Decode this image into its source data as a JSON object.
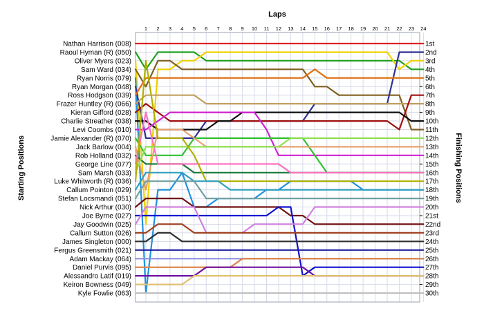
{
  "chart_data": {
    "type": "line",
    "title": "Laps",
    "ylabel_left": "Starting Positions",
    "ylabel_right": "Finishing Positions",
    "laps": [
      1,
      2,
      3,
      4,
      5,
      6,
      7,
      8,
      9,
      10,
      11,
      12,
      13,
      14,
      15,
      16,
      17,
      18,
      19,
      20,
      21,
      22,
      23,
      24
    ],
    "finishing_labels": [
      "1st",
      "2nd",
      "3rd",
      "4th",
      "5th",
      "6th",
      "7th",
      "8th",
      "9th",
      "10th",
      "11th",
      "12th",
      "13th",
      "14th",
      "15th",
      "16th",
      "17th",
      "18th",
      "19th",
      "20th",
      "21st",
      "22nd",
      "23rd",
      "24th",
      "25th",
      "26th",
      "27th",
      "28th",
      "29th",
      "30th"
    ],
    "grid": true,
    "series": [
      {
        "name": "Nathan Harrison (008)",
        "color": "#e02020",
        "positions": [
          1,
          1,
          1,
          1,
          1,
          1,
          1,
          1,
          1,
          1,
          1,
          1,
          1,
          1,
          1,
          1,
          1,
          1,
          1,
          1,
          1,
          1,
          1,
          1
        ]
      },
      {
        "name": "Raoul Hyman  (R) (050)",
        "color": "#20a020",
        "positions": [
          4,
          2,
          2,
          2,
          2,
          3,
          3,
          3,
          3,
          3,
          3,
          3,
          3,
          3,
          3,
          3,
          3,
          3,
          3,
          3,
          3,
          3,
          4,
          4
        ]
      },
      {
        "name": "Oliver Myers (023)",
        "color": "#f0d000",
        "positions": [
          22,
          4,
          4,
          3,
          3,
          2,
          2,
          2,
          2,
          2,
          2,
          2,
          2,
          2,
          2,
          2,
          2,
          2,
          2,
          2,
          2,
          4,
          3,
          3
        ]
      },
      {
        "name": "Sam Ward (034)",
        "color": "#806020",
        "positions": [
          6,
          3,
          3,
          4,
          4,
          4,
          4,
          4,
          4,
          4,
          4,
          4,
          4,
          4,
          6,
          6,
          7,
          7,
          7,
          7,
          7,
          7,
          11,
          11
        ]
      },
      {
        "name": "Ryan Norris (079)",
        "color": "#2090e0",
        "positions": [
          30,
          18,
          18,
          16,
          20,
          20,
          19,
          19,
          19,
          19,
          18,
          18,
          17,
          17,
          17,
          17,
          17,
          17,
          18,
          18,
          18,
          18,
          18,
          18
        ]
      },
      {
        "name": "Ryan Morgan (048)",
        "color": "#303090",
        "positions": [
          12,
          12,
          12,
          12,
          12,
          10,
          10,
          10,
          10,
          10,
          10,
          10,
          10,
          10,
          8,
          8,
          8,
          8,
          8,
          8,
          8,
          2,
          2,
          2
        ]
      },
      {
        "name": "Ross Hodgson (039)",
        "color": "#e07010",
        "positions": [
          5,
          5,
          5,
          5,
          5,
          5,
          5,
          5,
          5,
          5,
          5,
          5,
          5,
          5,
          4,
          5,
          5,
          5,
          5,
          5,
          5,
          5,
          5,
          5
        ]
      },
      {
        "name": "Frazer Huntley (R) (066)",
        "color": "#c0a060",
        "positions": [
          7,
          7,
          7,
          7,
          7,
          8,
          8,
          8,
          8,
          8,
          8,
          8,
          8,
          8,
          8,
          8,
          8,
          8,
          8,
          8,
          8,
          8,
          8,
          8
        ]
      },
      {
        "name": "Kieran Gifford (028)",
        "color": "#a01010",
        "positions": [
          8,
          9,
          10,
          10,
          10,
          10,
          10,
          10,
          10,
          10,
          10,
          10,
          10,
          10,
          10,
          10,
          10,
          10,
          10,
          10,
          10,
          11,
          7,
          7
        ]
      },
      {
        "name": "Charlie Streather (038)",
        "color": "#101010",
        "positions": [
          10,
          11,
          11,
          11,
          11,
          11,
          10,
          10,
          9,
          9,
          9,
          9,
          9,
          9,
          9,
          9,
          9,
          9,
          9,
          9,
          9,
          9,
          10,
          10
        ]
      },
      {
        "name": "Levi Coombs (010)",
        "color": "#d020d0",
        "positions": [
          11,
          10,
          9,
          9,
          9,
          9,
          9,
          9,
          9,
          9,
          11,
          14,
          14,
          14,
          14,
          14,
          14,
          14,
          14,
          14,
          14,
          14,
          14,
          14
        ]
      },
      {
        "name": "Jamie Alexander (R) (070)",
        "color": "#30c030",
        "positions": [
          14,
          14,
          14,
          14,
          12,
          12,
          12,
          12,
          12,
          12,
          12,
          12,
          12,
          12,
          14,
          16,
          16,
          16,
          16,
          16,
          16,
          16,
          16,
          16
        ]
      },
      {
        "name": "Jack Barlow (004)",
        "color": "#e8a070",
        "positions": [
          18,
          11,
          11,
          11,
          12,
          13,
          13,
          13,
          13,
          13,
          13,
          13,
          13,
          13,
          13,
          13,
          13,
          13,
          13,
          13,
          13,
          13,
          13,
          13
        ]
      },
      {
        "name": "Rob Holland (032)",
        "color": "#1a7a3a",
        "positions": [
          15,
          15,
          15,
          15,
          16,
          16,
          16,
          16,
          16,
          16,
          16,
          16,
          16,
          16,
          16,
          16,
          16,
          16,
          16,
          16,
          16,
          16,
          16,
          16
        ]
      },
      {
        "name": "George Line (077)",
        "color": "#ff6ec0",
        "positions": [
          9,
          15,
          15,
          15,
          15,
          15,
          15,
          15,
          15,
          15,
          15,
          15,
          16,
          16,
          16,
          16,
          16,
          16,
          16,
          16,
          16,
          16,
          16,
          16
        ]
      },
      {
        "name": "Sam Marsh (033)",
        "color": "#90e050",
        "positions": [
          13,
          13,
          13,
          13,
          13,
          13,
          13,
          13,
          13,
          13,
          13,
          13,
          12,
          12,
          12,
          12,
          12,
          12,
          12,
          12,
          12,
          12,
          12,
          12
        ]
      },
      {
        "name": "Luke Whitworth (R) (036)",
        "color": "#b0b000",
        "positions": [
          3,
          12,
          12,
          12,
          14,
          17,
          17,
          17,
          17,
          17,
          17,
          17,
          17,
          17,
          17,
          17,
          17,
          17,
          17,
          17,
          17,
          17,
          17,
          17
        ]
      },
      {
        "name": "Callum Pointon (029)",
        "color": "#30a0c0",
        "positions": [
          16,
          16,
          16,
          16,
          17,
          17,
          17,
          18,
          18,
          18,
          18,
          18,
          18,
          18,
          18,
          18,
          18,
          18,
          18,
          18,
          18,
          18,
          18,
          18
        ]
      },
      {
        "name": "Stefan Locsmandi (051)",
        "color": "#70a0a0",
        "positions": [
          17,
          17,
          17,
          17,
          17,
          19,
          19,
          19,
          19,
          19,
          19,
          19,
          19,
          19,
          19,
          19,
          19,
          19,
          19,
          19,
          19,
          19,
          19,
          19
        ]
      },
      {
        "name": "Nick Arthur (030)",
        "color": "#701010",
        "positions": [
          19,
          19,
          19,
          19,
          20,
          20,
          20,
          20,
          20,
          20,
          20,
          20,
          21,
          21,
          22,
          22,
          22,
          22,
          22,
          22,
          22,
          22,
          22,
          22
        ]
      },
      {
        "name": "Joe Byrne (027)",
        "color": "#1010d0",
        "positions": [
          21,
          21,
          21,
          21,
          21,
          21,
          21,
          21,
          21,
          21,
          21,
          20,
          20,
          28,
          27,
          27,
          27,
          27,
          27,
          27,
          27,
          27,
          27,
          27
        ]
      },
      {
        "name": "Jay Goodwin (025)",
        "color": "#d080e0",
        "positions": [
          20,
          20,
          20,
          20,
          20,
          23,
          23,
          23,
          23,
          22,
          22,
          22,
          22,
          22,
          20,
          20,
          20,
          20,
          20,
          20,
          20,
          20,
          20,
          20
        ]
      },
      {
        "name": "Callum Sutton (026)",
        "color": "#a04020",
        "positions": [
          23,
          22,
          22,
          22,
          23,
          23,
          23,
          23,
          23,
          23,
          23,
          23,
          23,
          23,
          23,
          23,
          23,
          23,
          23,
          23,
          23,
          23,
          23,
          23
        ]
      },
      {
        "name": "James Singleton (000)",
        "color": "#303030",
        "positions": [
          24,
          23,
          23,
          24,
          24,
          24,
          24,
          24,
          24,
          24,
          24,
          24,
          24,
          24,
          24,
          24,
          24,
          24,
          24,
          24,
          24,
          24,
          24,
          24
        ]
      },
      {
        "name": "Fergus Greensmith (021)",
        "color": "#2020a0",
        "positions": [
          25,
          25,
          25,
          25,
          25,
          25,
          25,
          25,
          25,
          25,
          25,
          25,
          25,
          25,
          25,
          25,
          25,
          25,
          25,
          25,
          25,
          25,
          25,
          25
        ]
      },
      {
        "name": "Adam Mackay (064)",
        "color": "#9090e0",
        "positions": [
          26,
          26,
          26,
          26,
          26,
          26,
          26,
          26,
          26,
          26,
          26,
          26,
          26,
          26,
          26,
          26,
          26,
          26,
          26,
          26,
          26,
          26,
          26,
          26
        ]
      },
      {
        "name": "Daniel Purvis (095)",
        "color": "#e08040",
        "positions": [
          27,
          27,
          27,
          27,
          27,
          27,
          27,
          27,
          26,
          26,
          26,
          26,
          26,
          26,
          26,
          26,
          26,
          26,
          26,
          26,
          26,
          26,
          26,
          26
        ]
      },
      {
        "name": "Alessandro Latif (019)",
        "color": "#7010a0",
        "positions": [
          28,
          28,
          28,
          28,
          28,
          27,
          27,
          27,
          27,
          27,
          27,
          27,
          27,
          27,
          28,
          28,
          28,
          28,
          28,
          28,
          28,
          28,
          28,
          28
        ]
      },
      {
        "name": "Keiron Bowness (049)",
        "color": "#e0c070",
        "positions": [
          29,
          29,
          29,
          29,
          28,
          28,
          28,
          28,
          28,
          28,
          28,
          28,
          28,
          28,
          28,
          28,
          28,
          28,
          28,
          28,
          28,
          28,
          28,
          28
        ]
      },
      {
        "name": "Kyle Fowlie (063)",
        "color": "#c0c0c0",
        "positions": [
          30,
          30,
          30,
          30,
          30,
          30,
          30,
          30,
          30,
          30,
          30,
          30,
          30,
          30,
          30,
          30,
          30,
          30,
          30,
          30,
          30,
          30,
          30,
          30
        ]
      }
    ]
  }
}
